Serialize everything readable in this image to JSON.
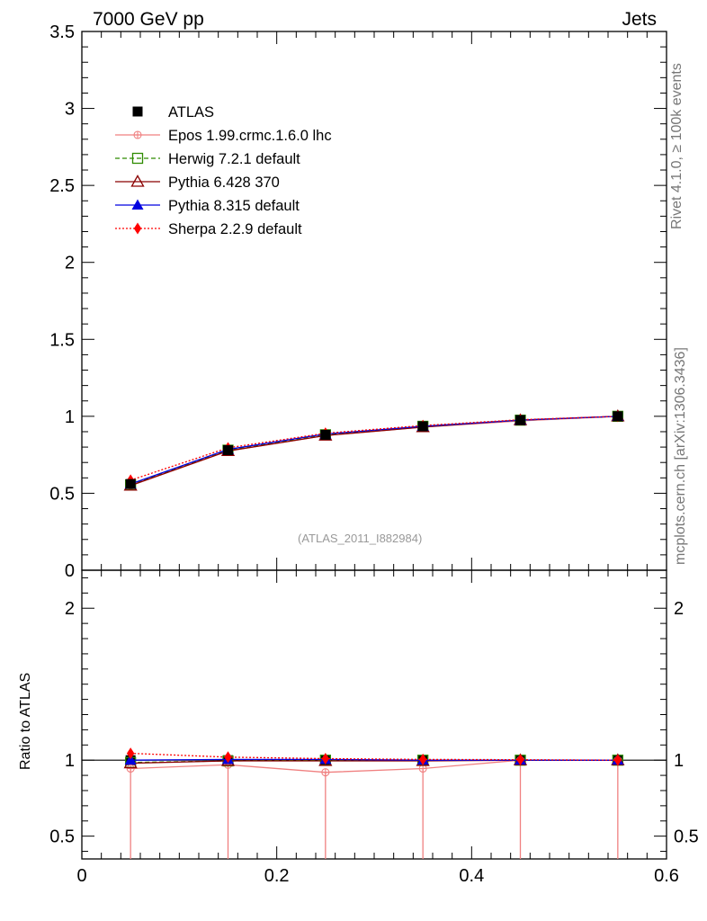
{
  "header": {
    "left": "7000 GeV pp",
    "right": "Jets"
  },
  "side_text": {
    "rivet": "Rivet 4.1.0, ≥ 100k events",
    "source": "mcplots.cern.ch [arXiv:1306.3436]"
  },
  "analysis_ref": "(ATLAS_2011_I882984)",
  "ratio_ylabel": "Ratio to ATLAS",
  "colors": {
    "atlas": "#000000",
    "epos": "#f08080",
    "herwig": "#2e8b00",
    "pythia6": "#8b0000",
    "pythia8": "#0000e0",
    "sherpa": "#ff0000"
  },
  "chart_data": [
    {
      "type": "line",
      "panel": "main",
      "title": "",
      "xlabel": "",
      "ylabel": "",
      "xlim": [
        0,
        0.6
      ],
      "ylim": [
        0,
        3.5
      ],
      "x_ticks": [
        0,
        0.2,
        0.4,
        0.6
      ],
      "y_ticks": [
        0,
        0.5,
        1,
        1.5,
        2,
        2.5,
        3,
        3.5
      ],
      "y_tick_labels": [
        "0",
        "0.5",
        "1",
        "1.5",
        "2",
        "2.5",
        "3",
        "3.5"
      ],
      "legend_position": "top-left",
      "x": [
        0.05,
        0.15,
        0.25,
        0.35,
        0.45,
        0.55
      ],
      "series": [
        {
          "name": "ATLAS",
          "key": "atlas",
          "values": [
            0.56,
            0.78,
            0.88,
            0.935,
            0.975,
            1.0
          ]
        },
        {
          "name": "Epos 1.99.crmc.1.6.0 lhc",
          "key": "epos",
          "values": [
            0.55,
            0.775,
            0.875,
            0.93,
            0.97,
            1.0
          ]
        },
        {
          "name": "Herwig 7.2.1 default",
          "key": "herwig",
          "values": [
            0.555,
            0.78,
            0.88,
            0.935,
            0.975,
            1.0
          ]
        },
        {
          "name": "Pythia 6.428 370",
          "key": "pythia6",
          "values": [
            0.55,
            0.775,
            0.875,
            0.93,
            0.975,
            1.0
          ]
        },
        {
          "name": "Pythia 8.315 default",
          "key": "pythia8",
          "values": [
            0.56,
            0.785,
            0.885,
            0.935,
            0.975,
            1.0
          ]
        },
        {
          "name": "Sherpa 2.2.9 default",
          "key": "sherpa",
          "values": [
            0.585,
            0.795,
            0.89,
            0.94,
            0.978,
            1.0
          ]
        }
      ]
    },
    {
      "type": "line",
      "panel": "ratio",
      "xlabel": "",
      "ylabel": "Ratio to ATLAS",
      "xlim": [
        0,
        0.6
      ],
      "ylim": [
        0.35,
        2.25
      ],
      "x_ticks": [
        0,
        0.2,
        0.4,
        0.6
      ],
      "x_tick_labels": [
        "0",
        "0.2",
        "0.4",
        "0.6"
      ],
      "y_ticks": [
        0.5,
        1,
        2
      ],
      "y_tick_labels": [
        "0.5",
        "1",
        "2"
      ],
      "x": [
        0.05,
        0.15,
        0.25,
        0.35,
        0.45,
        0.55
      ],
      "series": [
        {
          "name": "Epos 1.99.crmc.1.6.0 lhc",
          "key": "epos",
          "values": [
            0.945,
            0.97,
            0.92,
            0.945,
            1.0,
            1.0
          ]
        },
        {
          "name": "Herwig 7.2.1 default",
          "key": "herwig",
          "values": [
            0.985,
            0.995,
            1.0,
            1.0,
            1.0,
            1.0
          ]
        },
        {
          "name": "Pythia 6.428 370",
          "key": "pythia6",
          "values": [
            0.98,
            0.995,
            0.995,
            0.995,
            1.0,
            1.0
          ]
        },
        {
          "name": "Pythia 8.315 default",
          "key": "pythia8",
          "values": [
            1.0,
            1.005,
            1.005,
            1.0,
            1.0,
            1.0
          ]
        },
        {
          "name": "Sherpa 2.2.9 default",
          "key": "sherpa",
          "values": [
            1.045,
            1.02,
            1.01,
            1.005,
            1.003,
            1.0
          ]
        }
      ]
    }
  ]
}
